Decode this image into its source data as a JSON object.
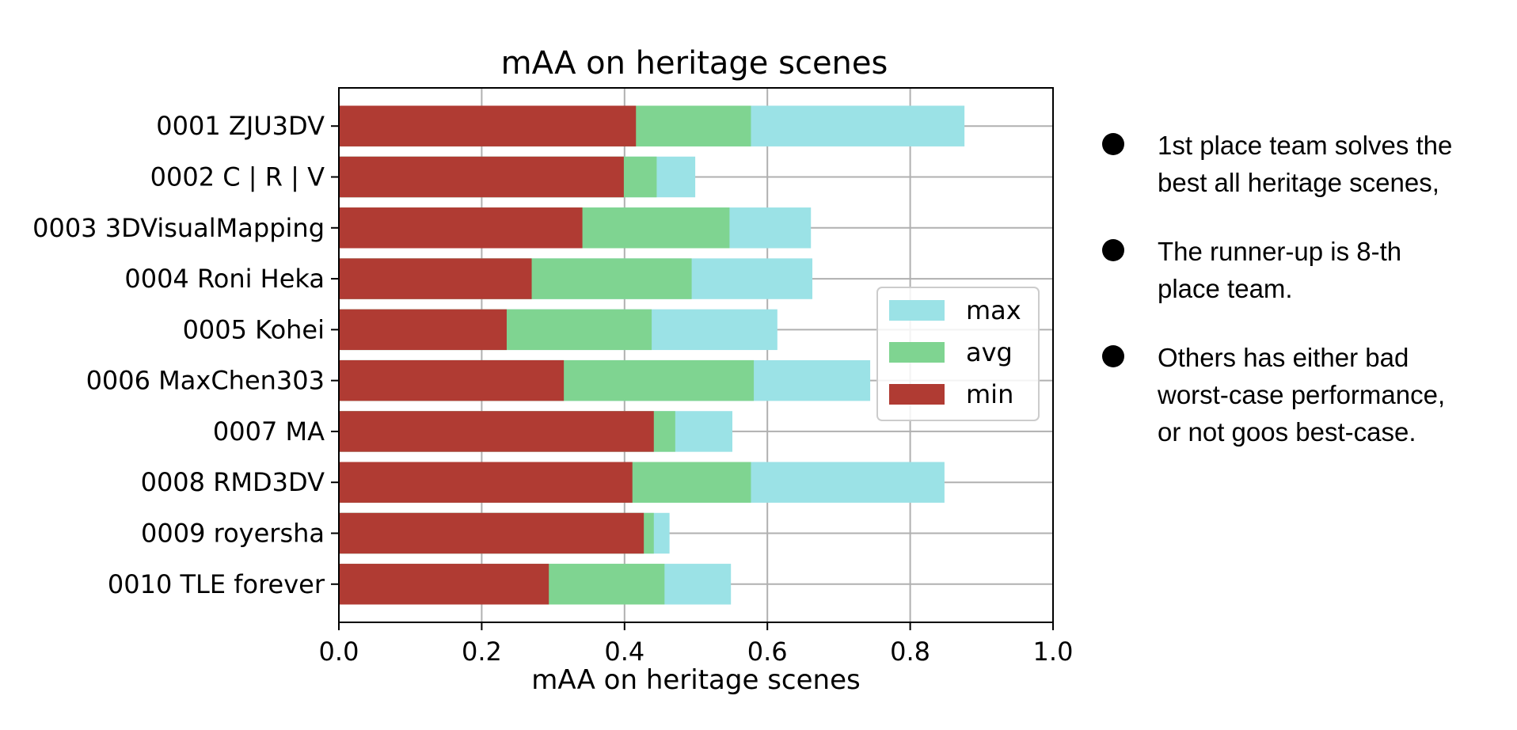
{
  "chart_data": {
    "type": "bar",
    "orientation": "horizontal",
    "stacked": "overlay",
    "title": "mAA on heritage scenes",
    "xlabel": "mAA on heritage scenes",
    "xlim": [
      0.0,
      1.0
    ],
    "xticks": [
      "0.0",
      "0.2",
      "0.4",
      "0.6",
      "0.8",
      "1.0"
    ],
    "grid": true,
    "legend_position": "right-center",
    "categories": [
      "0001 ZJU3DV",
      "0002 C | R | V",
      "0003 3DVisualMapping",
      "0004 Roni Heka",
      "0005 Kohei",
      "0006 MaxChen303",
      "0007 MA",
      "0008 RMD3DV",
      "0009 royersha",
      "0010 TLE forever"
    ],
    "series": [
      {
        "name": "max",
        "color": "#9be2e6",
        "values": [
          0.876,
          0.499,
          0.661,
          0.663,
          0.614,
          0.744,
          0.551,
          0.848,
          0.463,
          0.549
        ]
      },
      {
        "name": "avg",
        "color": "#7fd491",
        "values": [
          0.577,
          0.445,
          0.547,
          0.494,
          0.438,
          0.581,
          0.471,
          0.577,
          0.441,
          0.456
        ]
      },
      {
        "name": "min",
        "color": "#b03b33",
        "values": [
          0.416,
          0.399,
          0.341,
          0.27,
          0.235,
          0.315,
          0.441,
          0.411,
          0.427,
          0.294
        ]
      }
    ]
  },
  "bullets": [
    {
      "text_line1": "1st place team solves the",
      "text_line2": "best all heritage scenes,"
    },
    {
      "text_line1": "The runner-up is 8-th",
      "text_line2": "place team."
    },
    {
      "text_line1": "Others has either bad",
      "text_line2": "worst-case performance,",
      "text_line3": "or not goos best-case."
    }
  ]
}
